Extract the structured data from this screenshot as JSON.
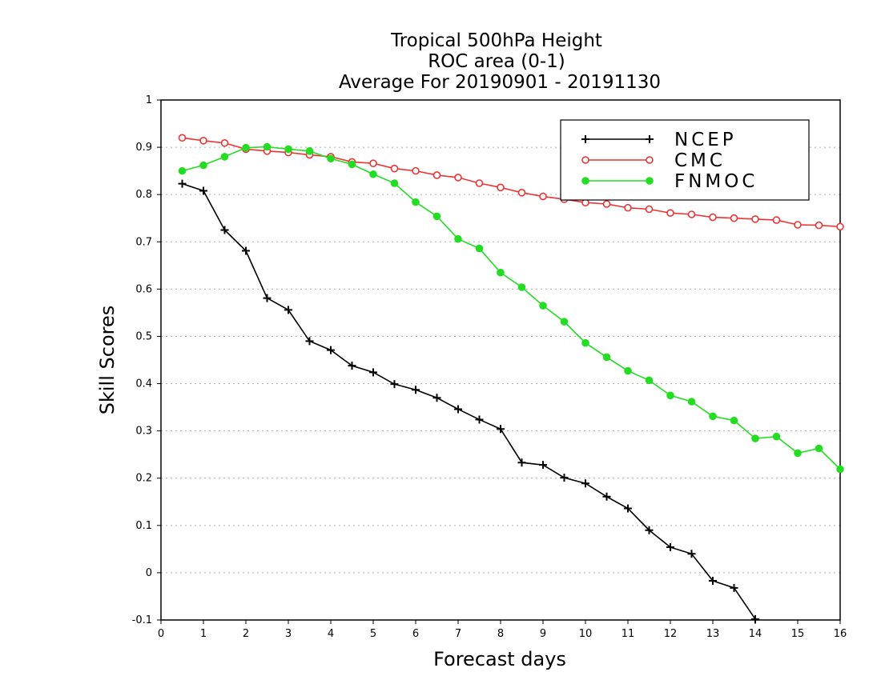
{
  "chart_data": {
    "type": "line",
    "title": [
      "Tropical 500hPa Height",
      "ROC area (0-1)",
      "Average For 20190901 - 20191130"
    ],
    "xlabel": "Forecast days",
    "ylabel": "Skill Scores",
    "xlim": [
      0,
      16
    ],
    "ylim": [
      -0.1,
      1
    ],
    "xticks": [
      0,
      1,
      2,
      3,
      4,
      5,
      6,
      7,
      8,
      9,
      10,
      11,
      12,
      13,
      14,
      15,
      16
    ],
    "yticks": [
      -0.1,
      0,
      0.1,
      0.2,
      0.3,
      0.4,
      0.5,
      0.6,
      0.7,
      0.8,
      0.9,
      1
    ],
    "ytick_labels": [
      "-0.1",
      "0",
      "0.1",
      "0.2",
      "0.3",
      "0.4",
      "0.5",
      "0.6",
      "0.7",
      "0.8",
      "0.9",
      "1"
    ],
    "grid": "horizontal dotted",
    "legend_position": "top-right",
    "x": [
      0.5,
      1,
      1.5,
      2,
      2.5,
      3,
      3.5,
      4,
      4.5,
      5,
      5.5,
      6,
      6.5,
      7,
      7.5,
      8,
      8.5,
      9,
      9.5,
      10,
      10.5,
      11,
      11.5,
      12,
      12.5,
      13,
      13.5,
      14,
      14.5,
      15,
      15.5,
      16
    ],
    "series": [
      {
        "name": "NCEP",
        "color": "#000000",
        "marker": "plus",
        "values": [
          0.823,
          0.808,
          0.725,
          0.681,
          0.581,
          0.556,
          0.49,
          0.471,
          0.438,
          0.424,
          0.399,
          0.387,
          0.37,
          0.346,
          0.324,
          0.304,
          0.233,
          0.228,
          0.201,
          0.189,
          0.161,
          0.136,
          0.09,
          0.054,
          0.04,
          -0.017,
          -0.032,
          -0.098,
          null,
          null,
          null,
          null
        ]
      },
      {
        "name": "CMC",
        "color": "#ee3333",
        "marker": "open-circle",
        "values": [
          0.92,
          0.914,
          0.909,
          0.896,
          0.892,
          0.889,
          0.884,
          0.88,
          0.869,
          0.866,
          0.855,
          0.85,
          0.841,
          0.836,
          0.824,
          0.815,
          0.804,
          0.796,
          0.79,
          0.783,
          0.78,
          0.772,
          0.769,
          0.761,
          0.758,
          0.752,
          0.75,
          0.748,
          0.746,
          0.736,
          0.735,
          0.732
        ]
      },
      {
        "name": "FNMOC",
        "color": "#22dd22",
        "marker": "filled-circle",
        "values": [
          0.85,
          0.862,
          0.88,
          0.899,
          0.901,
          0.896,
          0.892,
          0.876,
          0.864,
          0.843,
          0.824,
          0.784,
          0.754,
          0.706,
          0.686,
          0.635,
          0.604,
          0.565,
          0.531,
          0.486,
          0.456,
          0.427,
          0.407,
          0.375,
          0.362,
          0.331,
          0.322,
          0.284,
          0.288,
          0.253,
          0.263,
          0.219
        ]
      }
    ]
  }
}
